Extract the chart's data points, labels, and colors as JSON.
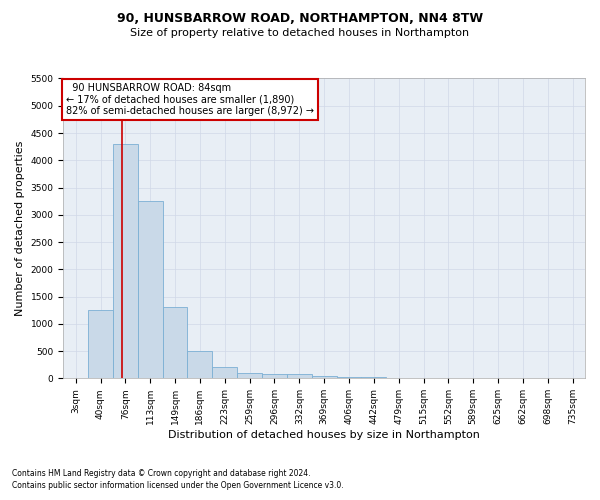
{
  "title1": "90, HUNSBARROW ROAD, NORTHAMPTON, NN4 8TW",
  "title2": "Size of property relative to detached houses in Northampton",
  "xlabel": "Distribution of detached houses by size in Northampton",
  "ylabel": "Number of detached properties",
  "footnote1": "Contains HM Land Registry data © Crown copyright and database right 2024.",
  "footnote2": "Contains public sector information licensed under the Open Government Licence v3.0.",
  "annotation_line1": "  90 HUNSBARROW ROAD: 84sqm  ",
  "annotation_line2": "← 17% of detached houses are smaller (1,890)",
  "annotation_line3": "82% of semi-detached houses are larger (8,972) →",
  "bar_labels": [
    "3sqm",
    "40sqm",
    "76sqm",
    "113sqm",
    "149sqm",
    "186sqm",
    "223sqm",
    "259sqm",
    "296sqm",
    "332sqm",
    "369sqm",
    "406sqm",
    "442sqm",
    "479sqm",
    "515sqm",
    "552sqm",
    "589sqm",
    "625sqm",
    "662sqm",
    "698sqm",
    "735sqm"
  ],
  "bar_values": [
    0,
    1250,
    4300,
    3250,
    1300,
    500,
    200,
    100,
    75,
    75,
    50,
    30,
    20,
    10,
    5,
    3,
    2,
    1,
    0,
    0,
    0
  ],
  "bar_color": "#c9d9e8",
  "bar_edge_color": "#7bafd4",
  "red_line_x": 1.85,
  "ylim": [
    0,
    5500
  ],
  "yticks": [
    0,
    500,
    1000,
    1500,
    2000,
    2500,
    3000,
    3500,
    4000,
    4500,
    5000,
    5500
  ],
  "annotation_box_color": "#ffffff",
  "annotation_box_edge": "#cc0000",
  "red_line_color": "#cc0000",
  "grid_color": "#d0d8e8",
  "background_color": "#e8eef5",
  "title_fontsize": 9,
  "subtitle_fontsize": 8,
  "ylabel_fontsize": 8,
  "xlabel_fontsize": 8,
  "tick_fontsize": 6.5,
  "annotation_fontsize": 7,
  "footnote_fontsize": 5.5
}
